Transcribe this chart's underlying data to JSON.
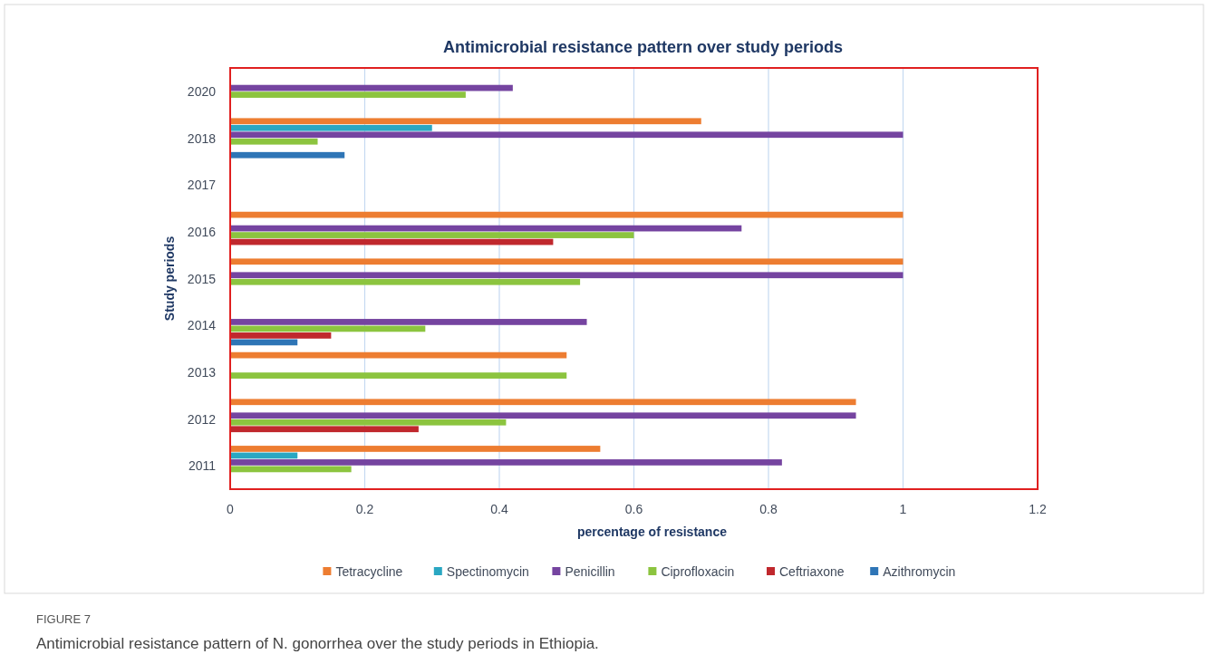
{
  "chart_data": {
    "type": "bar",
    "orientation": "horizontal",
    "title": "Antimicrobial resistance pattern over study periods",
    "xlabel": "percentage of resistance",
    "ylabel": "Study periods",
    "categories": [
      "2020",
      "2018",
      "2017",
      "2016",
      "2015",
      "2014",
      "2013",
      "2012",
      "2011"
    ],
    "series": [
      {
        "name": "Tetracycline",
        "color": "#ed7d31",
        "values": [
          null,
          0.7,
          null,
          1.0,
          1.0,
          null,
          0.5,
          0.93,
          0.55
        ]
      },
      {
        "name": "Spectinomycin",
        "color": "#2aa7c2",
        "values": [
          null,
          0.3,
          null,
          null,
          null,
          null,
          null,
          null,
          0.1
        ]
      },
      {
        "name": "Penicillin",
        "color": "#7544a0",
        "values": [
          0.42,
          1.0,
          null,
          0.76,
          1.0,
          0.53,
          null,
          0.93,
          0.82
        ]
      },
      {
        "name": "Ciprofloxacin",
        "color": "#8cc43f",
        "values": [
          0.35,
          0.13,
          null,
          0.6,
          0.52,
          0.29,
          0.5,
          0.41,
          0.18
        ]
      },
      {
        "name": "Ceftriaxone",
        "color": "#c0282d",
        "values": [
          null,
          null,
          null,
          0.48,
          null,
          0.15,
          null,
          0.28,
          null
        ]
      },
      {
        "name": "Azithromycin",
        "color": "#2e75b6",
        "values": [
          null,
          0.17,
          null,
          null,
          null,
          0.1,
          null,
          null,
          null
        ]
      }
    ],
    "xlim": [
      0,
      1.2
    ],
    "xticks": [
      0,
      0.2,
      0.4,
      0.6,
      0.8,
      1,
      1.2
    ],
    "grid": "x",
    "legend": "bottom",
    "annotations": [
      "FIGURE 7",
      "Antimicrobial resistance pattern of N. gonorrhea over the study periods in Ethiopia."
    ]
  }
}
